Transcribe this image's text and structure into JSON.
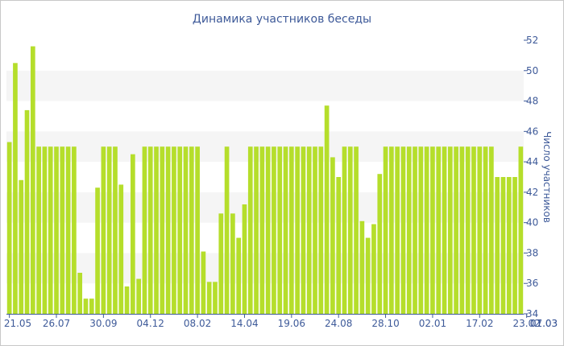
{
  "chart_data": {
    "type": "bar",
    "title": "Динамика участников беседы",
    "ylabel": "Число участников",
    "xlabel": "",
    "ylim": [
      34,
      52
    ],
    "yticks": [
      34,
      36,
      38,
      40,
      42,
      44,
      46,
      48,
      50,
      52
    ],
    "y_axis_side": "right",
    "bar_color": "#b5de2b",
    "band_color": "#f5f5f5",
    "text_color": "#3e5a99",
    "x_tick_labels": [
      {
        "index": 0,
        "label": "21.05"
      },
      {
        "index": 8,
        "label": "26.07"
      },
      {
        "index": 16,
        "label": "30.09"
      },
      {
        "index": 24,
        "label": "04.12"
      },
      {
        "index": 32,
        "label": "08.02"
      },
      {
        "index": 40,
        "label": "14.04"
      },
      {
        "index": 48,
        "label": "19.06"
      },
      {
        "index": 56,
        "label": "24.08"
      },
      {
        "index": 64,
        "label": "28.10"
      },
      {
        "index": 72,
        "label": "02.01"
      },
      {
        "index": 80,
        "label": "17.02"
      },
      {
        "index": 88,
        "label": "23.02"
      },
      {
        "index": 96,
        "label": "01.03"
      },
      {
        "index": 103,
        "label": "07.03"
      }
    ],
    "values": [
      45.3,
      50.5,
      42.8,
      47.4,
      51.6,
      45.0,
      45.0,
      45.0,
      45.0,
      45.0,
      45.0,
      45.0,
      36.7,
      35.0,
      35.0,
      42.3,
      45.0,
      45.0,
      45.0,
      42.5,
      35.8,
      44.5,
      36.3,
      45.0,
      45.0,
      45.0,
      45.0,
      45.0,
      45.0,
      45.0,
      45.0,
      45.0,
      45.0,
      38.1,
      36.1,
      36.1,
      40.6,
      45.0,
      40.6,
      39.0,
      41.2,
      45.0,
      45.0,
      45.0,
      45.0,
      45.0,
      45.0,
      45.0,
      45.0,
      45.0,
      45.0,
      45.0,
      45.0,
      45.0,
      47.7,
      44.3,
      43.0,
      45.0,
      45.0,
      45.0,
      40.1,
      39.0,
      39.9,
      43.2,
      45.0,
      45.0,
      45.0,
      45.0,
      45.0,
      45.0,
      45.0,
      45.0,
      45.0,
      45.0,
      45.0,
      45.0,
      45.0,
      45.0,
      45.0,
      45.0,
      45.0,
      45.0,
      45.0,
      43.0,
      43.0,
      43.0,
      43.0,
      45.0
    ]
  }
}
